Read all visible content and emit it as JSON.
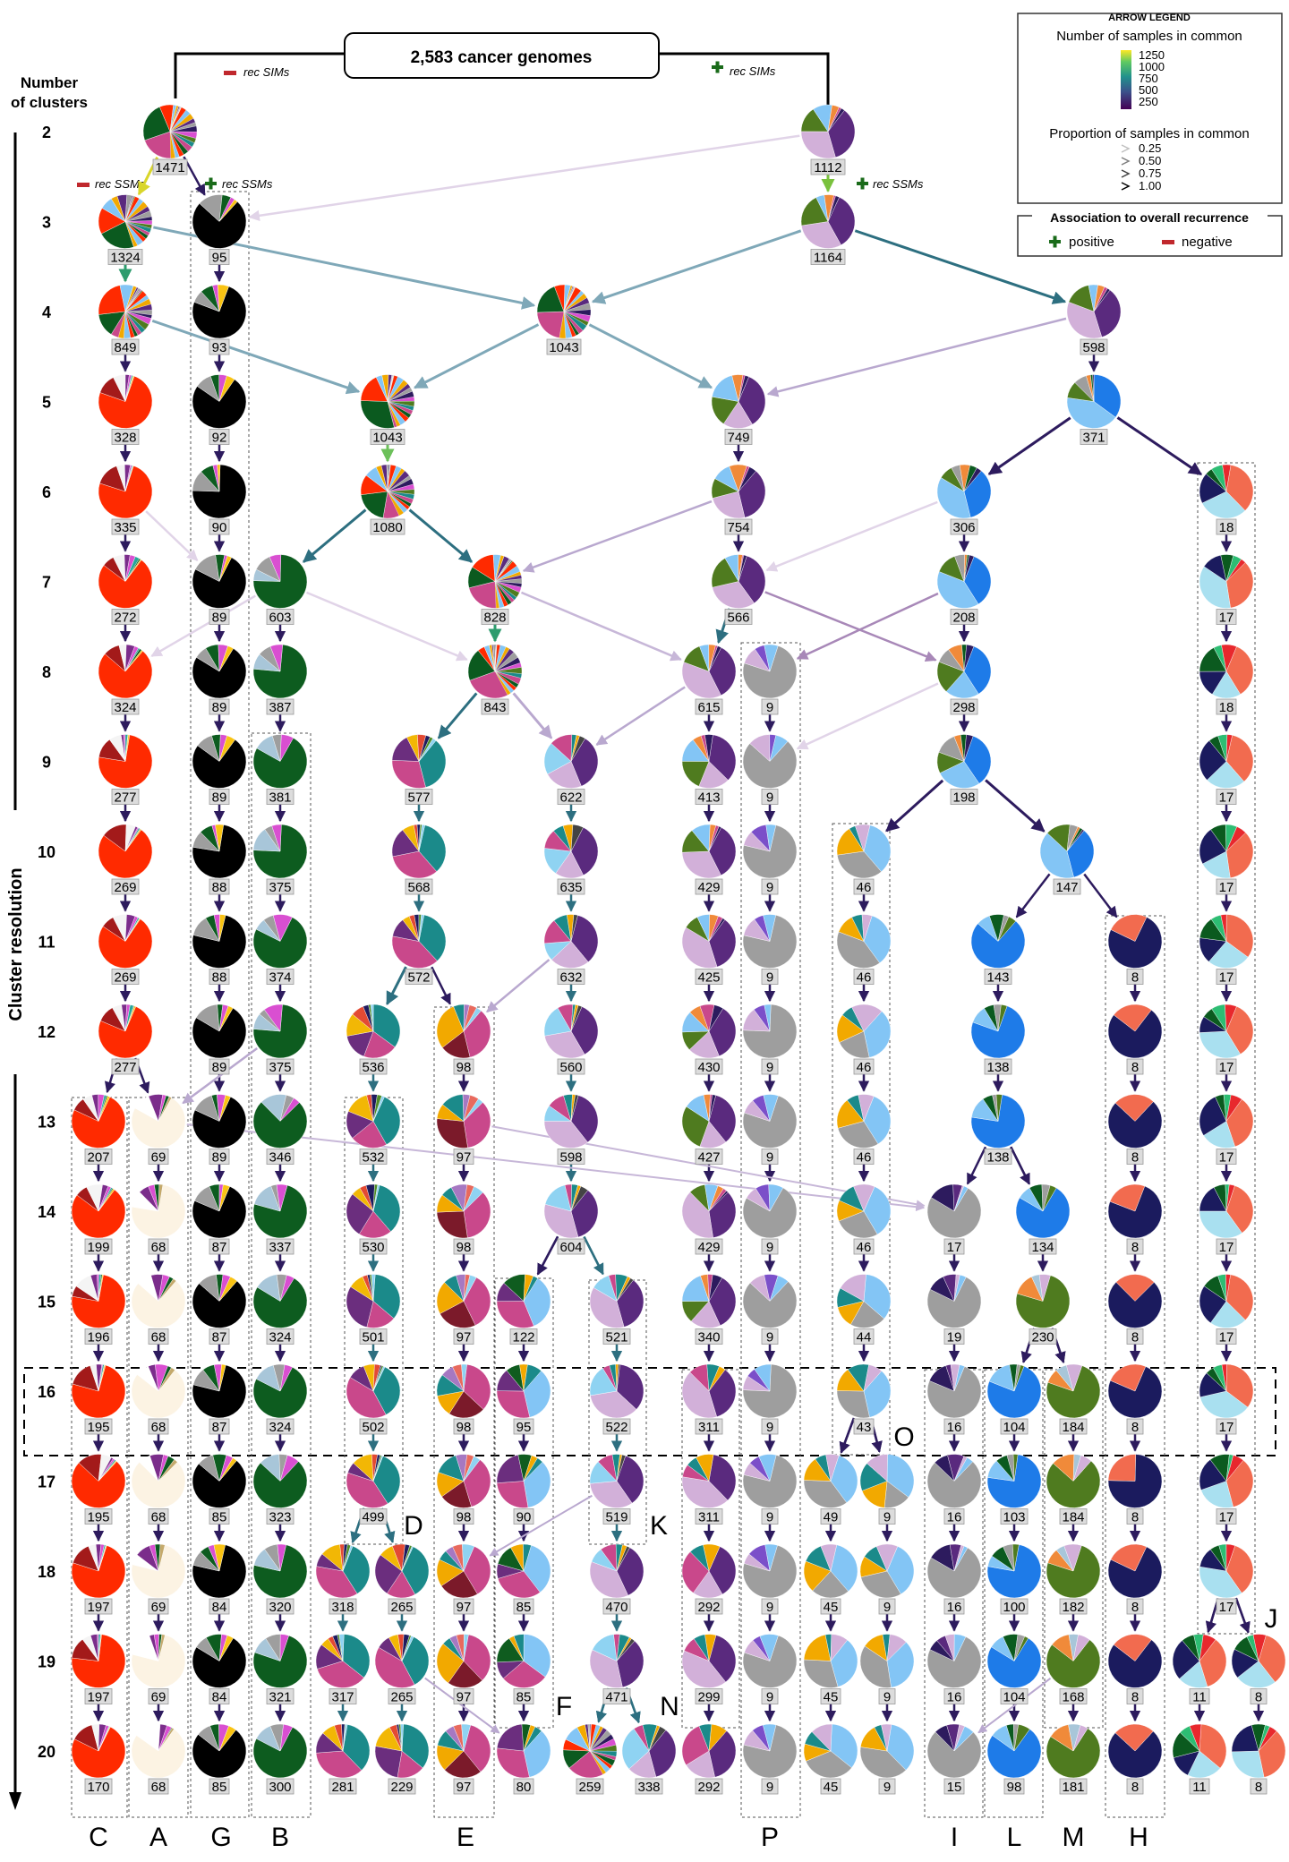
{
  "title": "2,583 cancer genomes",
  "axis": {
    "heading_line1": "Number",
    "heading_line2": "of clusters",
    "side_label": "Cluster resolution",
    "levels": [
      "2",
      "3",
      "4",
      "5",
      "6",
      "7",
      "8",
      "9",
      "10",
      "11",
      "12",
      "13",
      "14",
      "15",
      "16",
      "17",
      "18",
      "19",
      "20"
    ]
  },
  "annotations": {
    "rec_sims": "rec SIMs",
    "rec_ssms": "rec SSMs"
  },
  "legend": {
    "title": "ARROW LEGEND",
    "count_title": "Number of samples in common",
    "count_ticks": [
      "1250",
      "1000",
      "750",
      "500",
      "250"
    ],
    "prop_title": "Proportion of samples in common",
    "prop_ticks": [
      "0.25",
      "0.50",
      "0.75",
      "1.00"
    ],
    "assoc_title": "Association to overall recurrence",
    "positive": "positive",
    "negative": "negative"
  },
  "colors": {
    "positive": "#1a6b1a",
    "negative": "#c0282d",
    "arrow_dark": "#2d1b5e",
    "arrow_teal": "#2d6f80",
    "arrow_light": "#b9a8cf",
    "viridis": [
      "#fde725",
      "#5ec962",
      "#21918c",
      "#3b528b",
      "#440154"
    ]
  },
  "tree": {
    "row_1471": "1471",
    "row_1112": "1112",
    "L3": [
      "1324",
      "95",
      "1164"
    ],
    "L4": [
      "849",
      "93",
      "1043",
      "598"
    ],
    "L5": [
      "328",
      "92",
      "1043",
      "749",
      "371"
    ],
    "L6": [
      "335",
      "90",
      "1080",
      "754",
      "306",
      "18"
    ],
    "L7": [
      "272",
      "89",
      "603",
      "828",
      "566",
      "208",
      "17"
    ],
    "L8": [
      "324",
      "89",
      "387",
      "843",
      "615",
      "9",
      "298",
      "18"
    ],
    "L9": [
      "277",
      "89",
      "381",
      "577",
      "622",
      "413",
      "9",
      "198",
      "17"
    ],
    "L10": [
      "269",
      "88",
      "375",
      "568",
      "635",
      "429",
      "9",
      "46",
      "147",
      "17"
    ],
    "L11": [
      "269",
      "88",
      "374",
      "572",
      "632",
      "425",
      "9",
      "46",
      "143",
      "8",
      "17"
    ],
    "L12": [
      "277",
      "89",
      "375",
      "536",
      "98",
      "560",
      "430",
      "9",
      "46",
      "138",
      "8",
      "17"
    ],
    "L13": [
      "207",
      "69",
      "89",
      "346",
      "532",
      "97",
      "598",
      "427",
      "9",
      "46",
      "138",
      "8",
      "17"
    ],
    "L14": [
      "199",
      "68",
      "87",
      "337",
      "530",
      "98",
      "604",
      "429",
      "9",
      "46",
      "17",
      "134",
      "8",
      "17"
    ],
    "L15": [
      "196",
      "68",
      "87",
      "324",
      "501",
      "97",
      "122",
      "521",
      "340",
      "9",
      "44",
      "19",
      "230",
      "8",
      "17"
    ],
    "L16": [
      "195",
      "68",
      "87",
      "324",
      "502",
      "98",
      "95",
      "522",
      "311",
      "9",
      "43",
      "16",
      "104",
      "184",
      "8",
      "17"
    ],
    "L17": [
      "195",
      "68",
      "85",
      "323",
      "499",
      "98",
      "90",
      "519",
      "311",
      "9",
      "49",
      "9",
      "16",
      "103",
      "184",
      "8",
      "17"
    ],
    "L18": [
      "197",
      "69",
      "84",
      "320",
      "318",
      "265",
      "97",
      "85",
      "470",
      "292",
      "9",
      "45",
      "9",
      "16",
      "100",
      "182",
      "8",
      "17"
    ],
    "L19": [
      "197",
      "69",
      "84",
      "321",
      "317",
      "265",
      "97",
      "85",
      "471",
      "299",
      "9",
      "45",
      "9",
      "16",
      "104",
      "168",
      "8",
      "11",
      "8"
    ],
    "L20": [
      "170",
      "68",
      "85",
      "300",
      "281",
      "229",
      "97",
      "80",
      "259",
      "338",
      "292",
      "9",
      "45",
      "9",
      "15",
      "98",
      "181",
      "8",
      "11",
      "8"
    ]
  },
  "lineage_letters": [
    "C",
    "A",
    "G",
    "B",
    "D",
    "E",
    "F",
    "K",
    "N",
    "P",
    "O",
    "I",
    "L",
    "M",
    "H",
    "J"
  ],
  "color_profiles": {
    "C": [
      "#ff2a00",
      "#a31a1a",
      "#f4f4f4",
      "#7b2d8b",
      "#d94fd1",
      "#26a69a",
      "#0b5a1f",
      "#f9c313"
    ],
    "A": [
      "#fcf3e3",
      "#ffffff",
      "#7b2d8b",
      "#d94fd1",
      "#0b5a1f",
      "#c4a96b"
    ],
    "G": [
      "#000000",
      "#9e9e9e",
      "#0d5c1f",
      "#d94fd1",
      "#f9c313"
    ],
    "B": [
      "#0d5c1f",
      "#a8c6d9",
      "#9e9e9e",
      "#d94fd1"
    ],
    "D": [
      "#1b8a8a",
      "#c9488b",
      "#6b2e7e",
      "#f2b705",
      "#e34a33",
      "#1f1b5e",
      "#4e8b26",
      "#8fd3f2"
    ],
    "E": [
      "#c9488b",
      "#7b1a2a",
      "#f2a900",
      "#1b8a8a",
      "#a678c2",
      "#e86a5e",
      "#8fd3f2"
    ],
    "F": [
      "#83c5f5",
      "#c9488b",
      "#6b2e7e",
      "#0f5c1f",
      "#f2a900",
      "#1b8a8a"
    ],
    "K": [
      "#5a2a7e",
      "#d2b0d9",
      "#8fd3f2",
      "#c9488b",
      "#1b8a8a",
      "#f2a900",
      "#444444"
    ],
    "P": [
      "#9e9e9e",
      "#d2b0d9",
      "#7b4fc9",
      "#83c5f5"
    ],
    "O": [
      "#83c5f5",
      "#9e9e9e",
      "#f2a900",
      "#1b8a8a",
      "#d2b0d9"
    ],
    "I": [
      "#9e9e9e",
      "#2d1b5e",
      "#5a2a7e",
      "#d2b0d9",
      "#83c5f5"
    ],
    "L": [
      "#1e7be8",
      "#83c5f5",
      "#0b5a1f",
      "#9e9e9e",
      "#4f7b1f"
    ],
    "M": [
      "#4f7b1f",
      "#f08a3a",
      "#a8c6d9",
      "#d2b0d9"
    ],
    "H": [
      "#1b1b5e",
      "#f26b4f"
    ],
    "J": [
      "#f26b4f",
      "#a9e0f0",
      "#1b1b5e",
      "#0b5a1f",
      "#2dbd73",
      "#e8282d"
    ],
    "N": [
      "#5a2a7e",
      "#d2b0d9",
      "#c9488b",
      "#1b8a8a",
      "#f2a900"
    ],
    "mix": [
      "#1b8a8a",
      "#c9488b",
      "#0b5a1f",
      "#ff2a00",
      "#83c5f5",
      "#f2a900",
      "#5a2a7e",
      "#9e9e9e",
      "#2d1b5e",
      "#d94fd1",
      "#4f7b1f"
    ],
    "blue": [
      "#1e7be8",
      "#83c5f5",
      "#4f7b1f",
      "#9e9e9e",
      "#f08a3a",
      "#0b5a1f",
      "#2d1b5e"
    ],
    "purple": [
      "#5a2a7e",
      "#d2b0d9",
      "#4f7b1f",
      "#83c5f5",
      "#f08a3a",
      "#c9488b",
      "#2d1b5e"
    ]
  }
}
